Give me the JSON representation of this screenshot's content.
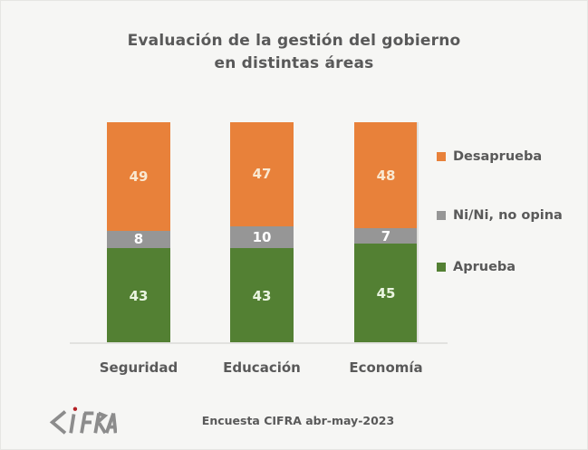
{
  "title": {
    "line1": "Evaluación de la gestión del gobierno",
    "line2": "en distintas áreas"
  },
  "chart_data": {
    "type": "bar",
    "stacked": true,
    "title": "Evaluación de la gestión del gobierno en distintas áreas",
    "categories": [
      "Seguridad",
      "Educación",
      "Economía"
    ],
    "series": [
      {
        "name": "Aprueba",
        "color": "#538033",
        "label_color": "#EAF4E0",
        "values": [
          43,
          43,
          45
        ]
      },
      {
        "name": "Ni/Ni, no opina",
        "color": "#969696",
        "label_color": "#FFFFFF",
        "values": [
          8,
          10,
          7
        ]
      },
      {
        "name": "Desaprueba",
        "color": "#E8813A",
        "label_color": "#F9E9D2",
        "values": [
          49,
          47,
          48
        ]
      }
    ],
    "ylim": [
      0,
      100
    ],
    "xlabel": "",
    "ylabel": "",
    "grid": false,
    "data_labels": true,
    "legend_position": "right"
  },
  "legend": {
    "items": [
      {
        "label": "Desaprueba",
        "color": "#E8813A"
      },
      {
        "label": "Ni/Ni, no opina",
        "color": "#969696"
      },
      {
        "label": "Aprueba",
        "color": "#538033"
      }
    ]
  },
  "footer": {
    "source": "Encuesta CIFRA abr-may-2023",
    "logo_text": "CIFRA"
  },
  "colors": {
    "text": "#595959",
    "axis_line": "#E2E2DF",
    "background": "#F6F6F4",
    "logo_gray": "#8C8C8C",
    "logo_dot": "#B42025"
  }
}
